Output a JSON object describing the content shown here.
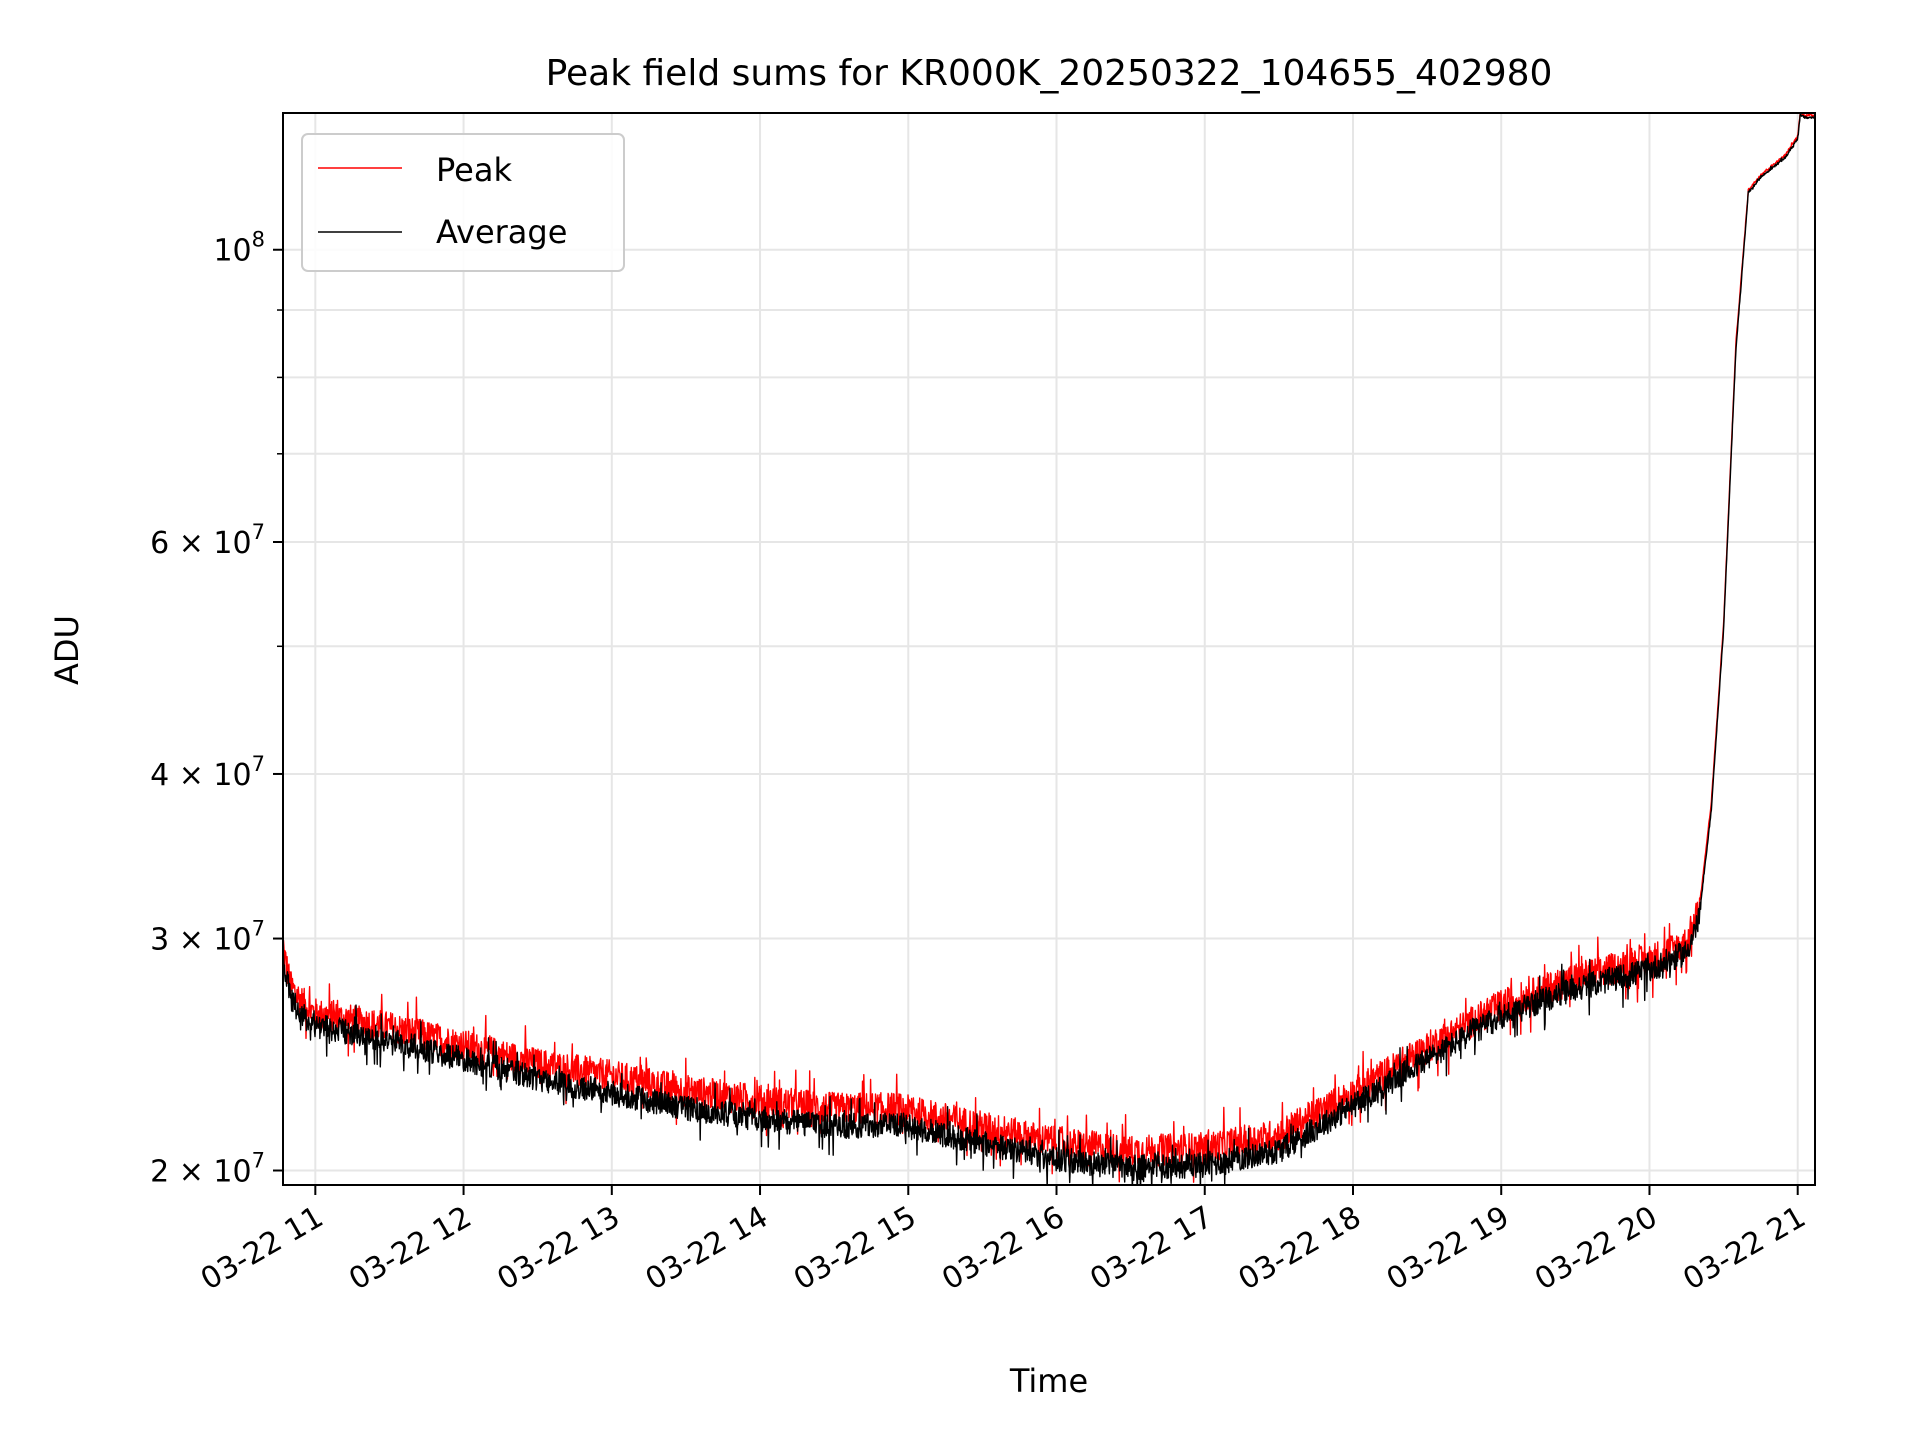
{
  "chart_data": {
    "type": "line",
    "title": "Peak field sums for KR000K_20250322_104655_402980",
    "xlabel": "Time",
    "ylabel": "ADU",
    "yscale": "log",
    "grid": true,
    "legend_position": "top-left",
    "x_range": [
      "2025-03-22T10:46:55",
      "2025-03-22T21:07:00"
    ],
    "y_range": [
      19500000,
      127000000
    ],
    "x_ticks": [
      {
        "value": "2025-03-22T11:00",
        "label": "03-22 11"
      },
      {
        "value": "2025-03-22T12:00",
        "label": "03-22 12"
      },
      {
        "value": "2025-03-22T13:00",
        "label": "03-22 13"
      },
      {
        "value": "2025-03-22T14:00",
        "label": "03-22 14"
      },
      {
        "value": "2025-03-22T15:00",
        "label": "03-22 15"
      },
      {
        "value": "2025-03-22T16:00",
        "label": "03-22 16"
      },
      {
        "value": "2025-03-22T17:00",
        "label": "03-22 17"
      },
      {
        "value": "2025-03-22T18:00",
        "label": "03-22 18"
      },
      {
        "value": "2025-03-22T19:00",
        "label": "03-22 19"
      },
      {
        "value": "2025-03-22T20:00",
        "label": "03-22 20"
      },
      {
        "value": "2025-03-22T21:00",
        "label": "03-22 21"
      }
    ],
    "y_major_ticks": [
      {
        "value": 20000000,
        "base": "2 × 10",
        "exp": "7"
      },
      {
        "value": 30000000,
        "base": "3 × 10",
        "exp": "7"
      },
      {
        "value": 40000000,
        "base": "4 × 10",
        "exp": "7"
      },
      {
        "value": 60000000,
        "base": "6 × 10",
        "exp": "7"
      },
      {
        "value": 100000000,
        "base": "10",
        "exp": "8"
      }
    ],
    "y_minor_ticks": [
      50000000,
      70000000,
      80000000,
      90000000
    ],
    "series": [
      {
        "name": "Peak",
        "color": "#ff0000",
        "noise": 0.028,
        "x": [
          "2025-03-22T10:46:55",
          "2025-03-22T10:50:00",
          "2025-03-22T10:55:00",
          "2025-03-22T11:00:00",
          "2025-03-22T11:30:00",
          "2025-03-22T12:00:00",
          "2025-03-22T12:30:00",
          "2025-03-22T13:00:00",
          "2025-03-22T13:30:00",
          "2025-03-22T14:00:00",
          "2025-03-22T14:30:00",
          "2025-03-22T14:55:00",
          "2025-03-22T15:30:00",
          "2025-03-22T16:00:00",
          "2025-03-22T16:30:00",
          "2025-03-22T17:00:00",
          "2025-03-22T17:30:00",
          "2025-03-22T18:00:00",
          "2025-03-22T18:30:00",
          "2025-03-22T19:00:00",
          "2025-03-22T19:30:00",
          "2025-03-22T20:00:00",
          "2025-03-22T20:15:00",
          "2025-03-22T20:20:00",
          "2025-03-22T20:25:00",
          "2025-03-22T20:30:00",
          "2025-03-22T20:35:00",
          "2025-03-22T20:40:00",
          "2025-03-22T20:45:00",
          "2025-03-22T20:50:00",
          "2025-03-22T20:55:00",
          "2025-03-22T21:00:00",
          "2025-03-22T21:01:00",
          "2025-03-22T21:03:00",
          "2025-03-22T21:07:00"
        ],
        "y": [
          29500000,
          27600000,
          26800000,
          26300000,
          25700000,
          24900000,
          24100000,
          23600000,
          23000000,
          22600000,
          22300000,
          22300000,
          21600000,
          21000000,
          20700000,
          20800000,
          21300000,
          22900000,
          24800000,
          26700000,
          28000000,
          28900000,
          29800000,
          31500000,
          38000000,
          52000000,
          85000000,
          111000000,
          114000000,
          116000000,
          118000000,
          122000000,
          127000000,
          126500000,
          126500000
        ]
      },
      {
        "name": "Average",
        "color": "#000000",
        "noise": 0.022,
        "x": [
          "2025-03-22T10:46:55",
          "2025-03-22T10:50:00",
          "2025-03-22T10:55:00",
          "2025-03-22T11:00:00",
          "2025-03-22T11:30:00",
          "2025-03-22T12:00:00",
          "2025-03-22T12:30:00",
          "2025-03-22T13:00:00",
          "2025-03-22T13:30:00",
          "2025-03-22T14:00:00",
          "2025-03-22T14:30:00",
          "2025-03-22T14:55:00",
          "2025-03-22T15:30:00",
          "2025-03-22T16:00:00",
          "2025-03-22T16:30:00",
          "2025-03-22T17:00:00",
          "2025-03-22T17:30:00",
          "2025-03-22T18:00:00",
          "2025-03-22T18:30:00",
          "2025-03-22T19:00:00",
          "2025-03-22T19:30:00",
          "2025-03-22T20:00:00",
          "2025-03-22T20:15:00",
          "2025-03-22T20:20:00",
          "2025-03-22T20:25:00",
          "2025-03-22T20:30:00",
          "2025-03-22T20:35:00",
          "2025-03-22T20:40:00",
          "2025-03-22T20:45:00",
          "2025-03-22T20:50:00",
          "2025-03-22T20:55:00",
          "2025-03-22T21:00:00",
          "2025-03-22T21:01:00",
          "2025-03-22T21:03:00",
          "2025-03-22T21:07:00"
        ],
        "y": [
          29000000,
          27000000,
          26200000,
          25800000,
          25100000,
          24300000,
          23500000,
          22900000,
          22300000,
          21900000,
          21600000,
          21700000,
          21000000,
          20400000,
          20100000,
          20200000,
          20700000,
          22400000,
          24300000,
          26200000,
          27500000,
          28400000,
          29300000,
          31000000,
          37500000,
          51500000,
          84000000,
          110500000,
          113500000,
          115500000,
          117500000,
          121500000,
          126500000,
          126000000,
          126000000
        ]
      }
    ]
  }
}
